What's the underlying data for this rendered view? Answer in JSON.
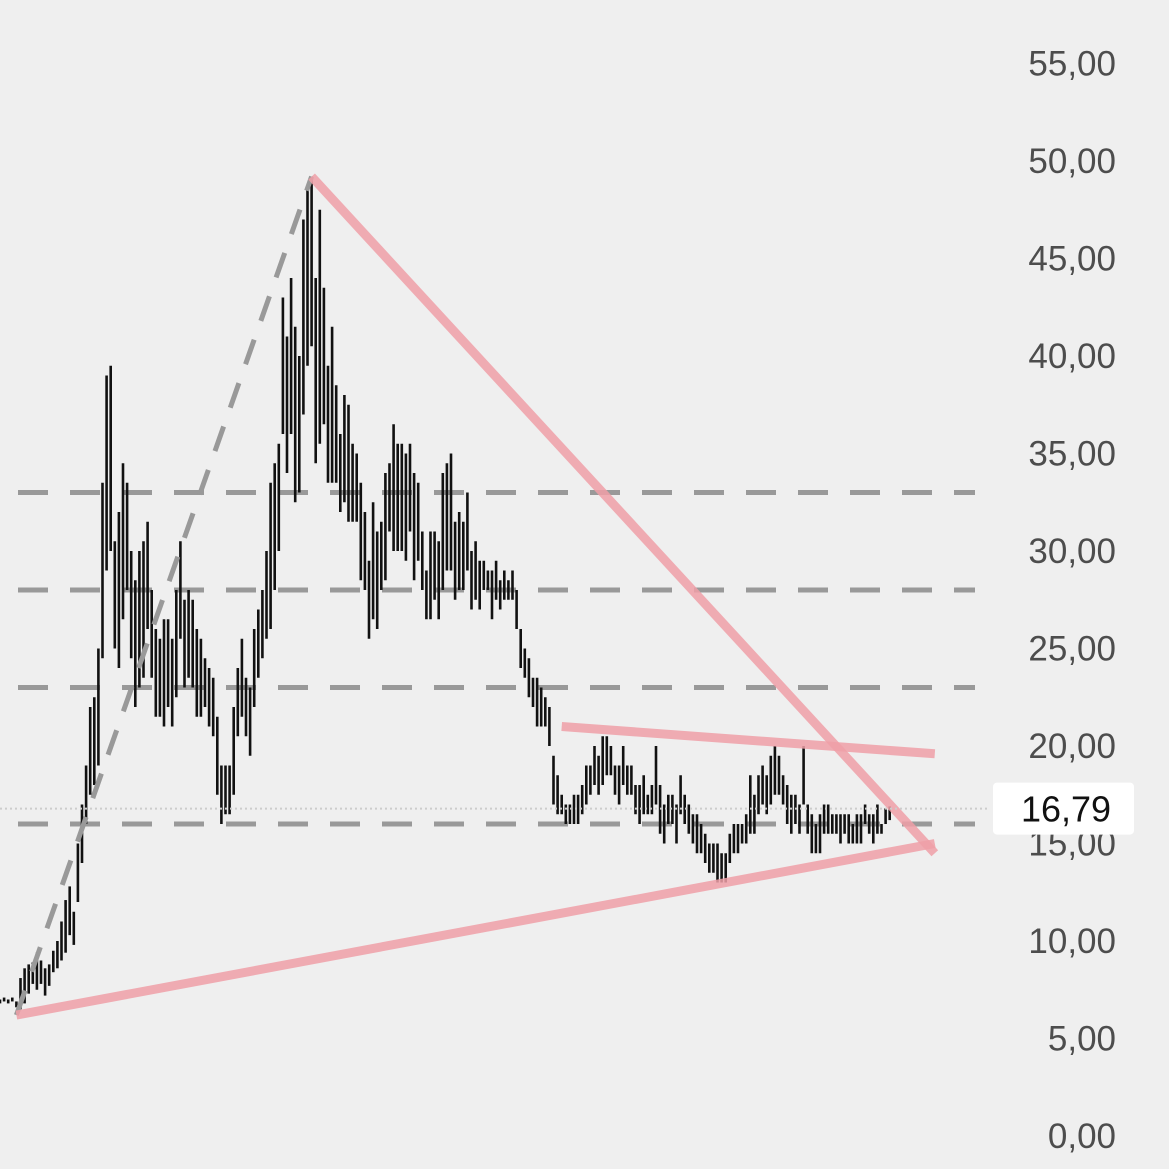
{
  "chart_data": {
    "type": "ohlc-bar",
    "y_axis": {
      "range": [
        0,
        57
      ],
      "ticks": [
        0,
        5,
        10,
        15,
        20,
        25,
        30,
        35,
        40,
        45,
        50,
        55
      ],
      "tick_labels": [
        "0,00",
        "5,00",
        "10,00",
        "15,00",
        "20,00",
        "25,00",
        "30,00",
        "35,00",
        "40,00",
        "45,00",
        "50,00",
        "55,00"
      ],
      "position": "right"
    },
    "x_range": [
      0,
      228
    ],
    "grid": false,
    "last_price": {
      "value": 16.79,
      "label": "16,79"
    },
    "colors": {
      "background": "#efefef",
      "bars": "#111111",
      "trendlines": "#f0a0a8",
      "levels": "#999999",
      "tick_text": "#4d4d4d",
      "price_label_bg": "#ffffff"
    },
    "horizontal_levels": [
      33.0,
      28.0,
      23.0,
      16.0
    ],
    "trendlines": [
      {
        "from": [
          76,
          49.2
        ],
        "to": [
          228,
          14.5
        ]
      },
      {
        "from": [
          4,
          6.2
        ],
        "to": [
          228,
          15.0
        ]
      },
      {
        "from": [
          137,
          21.0
        ],
        "to": [
          228,
          19.6
        ]
      }
    ],
    "dashed_trendline": {
      "from": [
        4,
        6.2
      ],
      "to": [
        76,
        49.2
      ]
    },
    "bars": [
      [
        6.8,
        7.0
      ],
      [
        6.9,
        7.1
      ],
      [
        6.8,
        7.0
      ],
      [
        6.9,
        7.1
      ],
      [
        6.6,
        6.9
      ],
      [
        6.5,
        8.1
      ],
      [
        6.8,
        8.6
      ],
      [
        7.3,
        8.8
      ],
      [
        7.8,
        8.9
      ],
      [
        7.5,
        9.4
      ],
      [
        7.8,
        9.0
      ],
      [
        7.2,
        8.6
      ],
      [
        7.7,
        8.8
      ],
      [
        8.4,
        9.5
      ],
      [
        8.6,
        10.0
      ],
      [
        9.0,
        11.0
      ],
      [
        9.4,
        12.1
      ],
      [
        10.3,
        12.8
      ],
      [
        9.8,
        11.5
      ],
      [
        12.0,
        15.0
      ],
      [
        14.0,
        17.0
      ],
      [
        16.0,
        19.0
      ],
      [
        17.5,
        22.0
      ],
      [
        18.0,
        22.5
      ],
      [
        19.0,
        25.0
      ],
      [
        24.5,
        33.5
      ],
      [
        29.0,
        39.0
      ],
      [
        30.0,
        39.5
      ],
      [
        25.0,
        30.5
      ],
      [
        24.0,
        32.0
      ],
      [
        26.5,
        34.5
      ],
      [
        28.0,
        33.5
      ],
      [
        24.5,
        30.0
      ],
      [
        22.0,
        28.5
      ],
      [
        23.0,
        30.0
      ],
      [
        23.5,
        30.5
      ],
      [
        26.0,
        31.5
      ],
      [
        23.5,
        28.0
      ],
      [
        21.5,
        26.0
      ],
      [
        21.5,
        25.5
      ],
      [
        21.0,
        26.5
      ],
      [
        22.0,
        26.5
      ],
      [
        21.0,
        25.5
      ],
      [
        22.5,
        28.0
      ],
      [
        25.5,
        30.5
      ],
      [
        23.0,
        27.5
      ],
      [
        23.5,
        28.0
      ],
      [
        23.0,
        27.5
      ],
      [
        21.5,
        26.0
      ],
      [
        21.5,
        25.5
      ],
      [
        22.0,
        24.5
      ],
      [
        21.0,
        24.0
      ],
      [
        20.5,
        23.5
      ],
      [
        17.5,
        21.5
      ],
      [
        16.0,
        19.0
      ],
      [
        16.5,
        19.0
      ],
      [
        16.5,
        19.0
      ],
      [
        17.5,
        22.0
      ],
      [
        20.5,
        24.0
      ],
      [
        21.5,
        25.5
      ],
      [
        20.5,
        23.5
      ],
      [
        19.5,
        23.0
      ],
      [
        22.0,
        26.0
      ],
      [
        23.5,
        27.0
      ],
      [
        24.5,
        28.0
      ],
      [
        25.5,
        30.0
      ],
      [
        26.0,
        33.5
      ],
      [
        28.0,
        34.5
      ],
      [
        30.0,
        35.5
      ],
      [
        36.0,
        43.0
      ],
      [
        34.0,
        41.0
      ],
      [
        36.0,
        44.0
      ],
      [
        32.5,
        41.5
      ],
      [
        33.0,
        40.0
      ],
      [
        37.0,
        47.0
      ],
      [
        39.5,
        48.5
      ],
      [
        40.5,
        49.2
      ],
      [
        34.5,
        44.0
      ],
      [
        35.5,
        47.5
      ],
      [
        36.5,
        43.5
      ],
      [
        33.5,
        39.5
      ],
      [
        33.5,
        41.5
      ],
      [
        33.5,
        38.5
      ],
      [
        32.0,
        36.0
      ],
      [
        32.5,
        38.0
      ],
      [
        31.5,
        37.5
      ],
      [
        31.5,
        35.5
      ],
      [
        31.5,
        35.0
      ],
      [
        28.5,
        33.5
      ],
      [
        28.0,
        32.0
      ],
      [
        25.5,
        29.5
      ],
      [
        26.5,
        32.5
      ],
      [
        26.0,
        31.0
      ],
      [
        28.0,
        31.5
      ],
      [
        28.5,
        34.0
      ],
      [
        31.0,
        34.5
      ],
      [
        30.0,
        36.5
      ],
      [
        30.0,
        35.5
      ],
      [
        30.0,
        35.5
      ],
      [
        29.5,
        35.0
      ],
      [
        31.0,
        35.5
      ],
      [
        28.5,
        34.0
      ],
      [
        29.5,
        33.5
      ],
      [
        28.0,
        31.0
      ],
      [
        26.5,
        29.0
      ],
      [
        26.5,
        31.0
      ],
      [
        27.5,
        31.0
      ],
      [
        26.5,
        30.5
      ],
      [
        28.0,
        34.0
      ],
      [
        29.0,
        34.5
      ],
      [
        29.0,
        35.0
      ],
      [
        27.5,
        31.5
      ],
      [
        28.0,
        32.0
      ],
      [
        28.0,
        31.5
      ],
      [
        29.0,
        33.0
      ],
      [
        27.0,
        30.0
      ],
      [
        27.5,
        30.5
      ],
      [
        27.0,
        29.5
      ],
      [
        28.0,
        29.5
      ],
      [
        28.0,
        29.0
      ],
      [
        26.5,
        29.0
      ],
      [
        27.5,
        29.5
      ],
      [
        27.0,
        28.5
      ],
      [
        27.5,
        29.0
      ],
      [
        27.5,
        28.5
      ],
      [
        27.5,
        29.0
      ],
      [
        26.0,
        28.0
      ],
      [
        24.0,
        26.0
      ],
      [
        23.5,
        25.0
      ],
      [
        22.5,
        24.5
      ],
      [
        22.0,
        23.5
      ],
      [
        21.0,
        23.5
      ],
      [
        21.0,
        23.0
      ],
      [
        21.0,
        22.5
      ],
      [
        20.0,
        22.0
      ],
      [
        17.0,
        19.5
      ],
      [
        16.5,
        18.5
      ],
      [
        16.5,
        17.5
      ],
      [
        16.0,
        17.0
      ],
      [
        16.0,
        17.0
      ],
      [
        16.0,
        17.5
      ],
      [
        16.0,
        17.5
      ],
      [
        16.5,
        18.0
      ],
      [
        17.0,
        19.0
      ],
      [
        17.5,
        19.0
      ],
      [
        18.0,
        20.0
      ],
      [
        17.5,
        19.5
      ],
      [
        18.0,
        20.5
      ],
      [
        18.5,
        20.5
      ],
      [
        18.5,
        20.0
      ],
      [
        17.5,
        19.0
      ],
      [
        17.0,
        19.0
      ],
      [
        18.0,
        20.0
      ],
      [
        17.5,
        19.0
      ],
      [
        17.5,
        19.0
      ],
      [
        16.5,
        18.0
      ],
      [
        16.0,
        18.0
      ],
      [
        16.5,
        18.5
      ],
      [
        16.5,
        17.5
      ],
      [
        16.5,
        18.0
      ],
      [
        17.0,
        20.0
      ],
      [
        15.5,
        18.0
      ],
      [
        15.0,
        17.0
      ],
      [
        16.0,
        17.5
      ],
      [
        16.0,
        17.5
      ],
      [
        15.0,
        17.0
      ],
      [
        16.5,
        18.5
      ],
      [
        16.0,
        17.5
      ],
      [
        15.5,
        17.0
      ],
      [
        15.0,
        16.5
      ],
      [
        14.5,
        16.5
      ],
      [
        14.5,
        16.0
      ],
      [
        14.0,
        15.5
      ],
      [
        13.5,
        15.0
      ],
      [
        13.5,
        15.0
      ],
      [
        13.0,
        15.0
      ],
      [
        13.0,
        14.5
      ],
      [
        13.0,
        14.5
      ],
      [
        14.0,
        15.5
      ],
      [
        14.5,
        16.0
      ],
      [
        14.5,
        16.0
      ],
      [
        15.0,
        16.0
      ],
      [
        15.0,
        16.5
      ],
      [
        15.5,
        18.5
      ],
      [
        15.5,
        17.5
      ],
      [
        16.5,
        18.5
      ],
      [
        17.0,
        19.0
      ],
      [
        16.5,
        18.5
      ],
      [
        17.0,
        19.5
      ],
      [
        17.5,
        20.0
      ],
      [
        17.5,
        19.5
      ],
      [
        17.0,
        18.5
      ],
      [
        16.0,
        18.0
      ],
      [
        15.5,
        17.5
      ],
      [
        16.0,
        17.5
      ],
      [
        15.5,
        17.0
      ],
      [
        17.0,
        20.0
      ],
      [
        15.5,
        17.0
      ],
      [
        14.5,
        16.5
      ],
      [
        14.5,
        16.0
      ],
      [
        14.5,
        16.5
      ],
      [
        15.5,
        17.0
      ],
      [
        15.5,
        17.0
      ],
      [
        15.5,
        16.5
      ],
      [
        15.5,
        16.5
      ],
      [
        15.0,
        16.5
      ],
      [
        15.5,
        16.5
      ],
      [
        15.0,
        16.5
      ],
      [
        15.0,
        16.0
      ],
      [
        15.0,
        16.5
      ],
      [
        15.0,
        16.5
      ],
      [
        16.0,
        17.0
      ],
      [
        15.5,
        16.5
      ],
      [
        15.0,
        16.5
      ],
      [
        15.5,
        17.0
      ],
      [
        15.5,
        16.0
      ],
      [
        16.0,
        16.8
      ],
      [
        16.2,
        16.9
      ]
    ]
  }
}
